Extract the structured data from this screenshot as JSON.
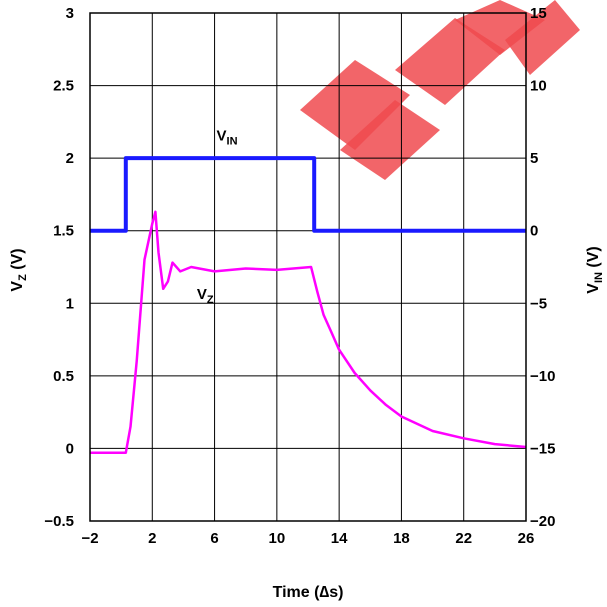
{
  "chart_data": {
    "type": "line",
    "xlabel": "Time (∆s)",
    "ylabel_left": {
      "main": "V",
      "sub": "Z",
      "rest": " (V)"
    },
    "ylabel_right": {
      "main": "V",
      "sub": "IN",
      "rest": " (V)"
    },
    "x_ticks": [
      "−2",
      "2",
      "6",
      "10",
      "14",
      "18",
      "22",
      "26"
    ],
    "left_ticks": [
      "−0.5",
      "0",
      "0.5",
      "1",
      "1.5",
      "2",
      "2.5",
      "3"
    ],
    "right_ticks": [
      "−20",
      "−15",
      "−10",
      "−5",
      "0",
      "5",
      "10",
      "15"
    ],
    "xlim": [
      -2,
      26
    ],
    "ylim_left": [
      -0.5,
      3
    ],
    "ylim_right": [
      -20,
      15
    ],
    "grid": true,
    "series": [
      {
        "name": "V_IN",
        "label": {
          "main": "V",
          "sub": "IN"
        },
        "axis": "right",
        "color": "#1a1aff",
        "x": [
          -2,
          0.3,
          0.3,
          12.4,
          12.4,
          26
        ],
        "y": [
          0,
          0,
          5,
          5,
          0,
          0
        ]
      },
      {
        "name": "V_Z",
        "label": {
          "main": "V",
          "sub": "Z"
        },
        "axis": "left",
        "color": "#ff00ff",
        "x": [
          -2,
          0.3,
          0.6,
          1.0,
          1.5,
          2.0,
          2.2,
          2.4,
          2.7,
          3.0,
          3.3,
          3.8,
          4.5,
          6,
          8,
          10,
          12.2,
          12.6,
          13.0,
          13.5,
          14,
          15,
          16,
          17,
          18,
          20,
          22,
          24,
          26
        ],
        "y": [
          -0.03,
          -0.03,
          0.15,
          0.6,
          1.3,
          1.55,
          1.63,
          1.35,
          1.1,
          1.15,
          1.28,
          1.22,
          1.25,
          1.22,
          1.24,
          1.23,
          1.25,
          1.08,
          0.92,
          0.8,
          0.68,
          0.52,
          0.4,
          0.3,
          0.22,
          0.12,
          0.07,
          0.03,
          0.01
        ]
      }
    ]
  },
  "watermark": {
    "color": "#f04a4f",
    "opacity": 0.85
  }
}
